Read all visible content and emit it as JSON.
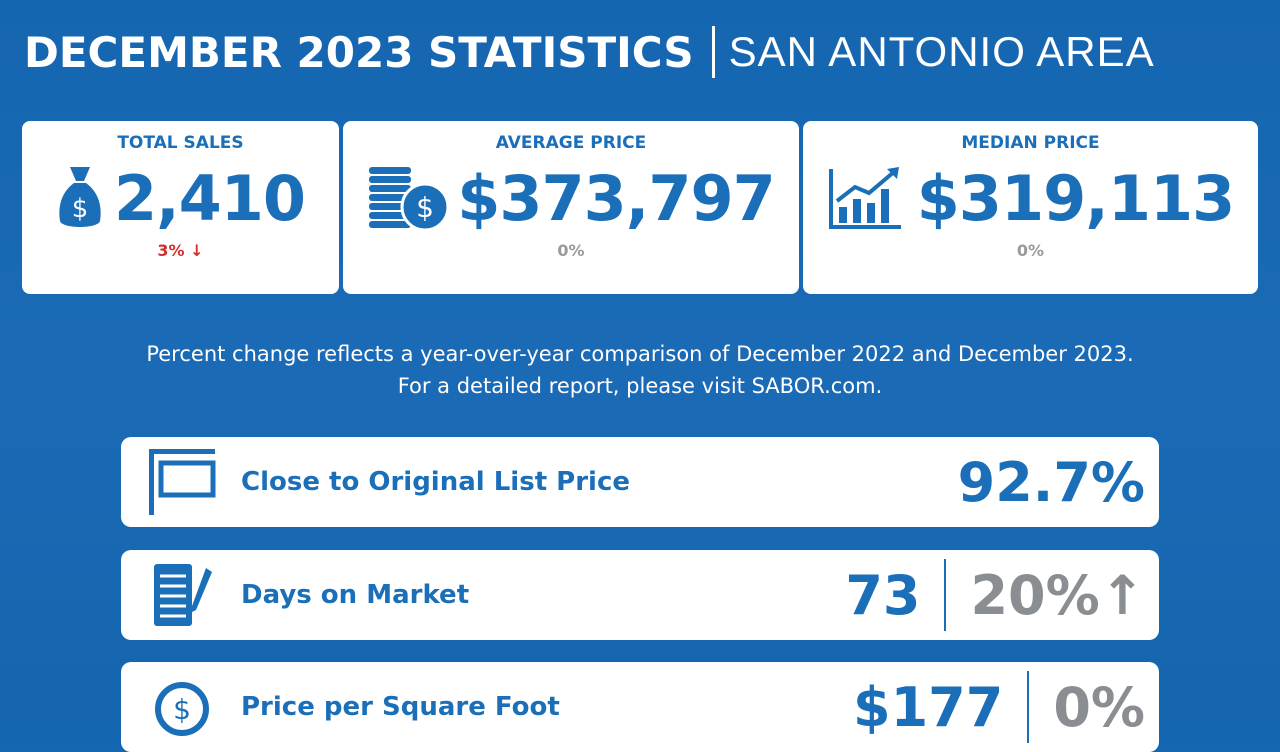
{
  "header": {
    "title": "DECEMBER 2023 STATISTICS",
    "subtitle": "SAN ANTONIO AREA"
  },
  "cards": [
    {
      "label": "TOTAL SALES",
      "value": "2,410",
      "change": "3%",
      "change_dir": "down",
      "change_color": "#d32f2f",
      "icon": "money-bag-icon"
    },
    {
      "label": "AVERAGE PRICE",
      "value": "$373,797",
      "change": "0%",
      "change_color": "#9a9a9a",
      "icon": "coin-stack-icon"
    },
    {
      "label": "MEDIAN PRICE",
      "value": "$319,113",
      "change": "0%",
      "change_color": "#9a9a9a",
      "icon": "bar-chart-up-icon"
    }
  ],
  "note": {
    "line1": "Percent change reflects a year-over-year comparison of December 2022 and December 2023.",
    "line2": "For a detailed report, please visit SABOR.com."
  },
  "metrics": [
    {
      "label": "Close to Original List Price",
      "value": "92.7%",
      "icon": "sign-icon"
    },
    {
      "label": "Days on Market",
      "value": "73",
      "change": "20%",
      "change_dir": "up",
      "icon": "notepad-icon"
    },
    {
      "label": "Price per Square Foot",
      "value": "$177",
      "change": "0%",
      "icon": "refresh-dollar-icon"
    }
  ],
  "colors": {
    "background": "#1668b2",
    "accent": "#1b6fb9",
    "gray": "#8a8d91",
    "down": "#d32f2f"
  }
}
